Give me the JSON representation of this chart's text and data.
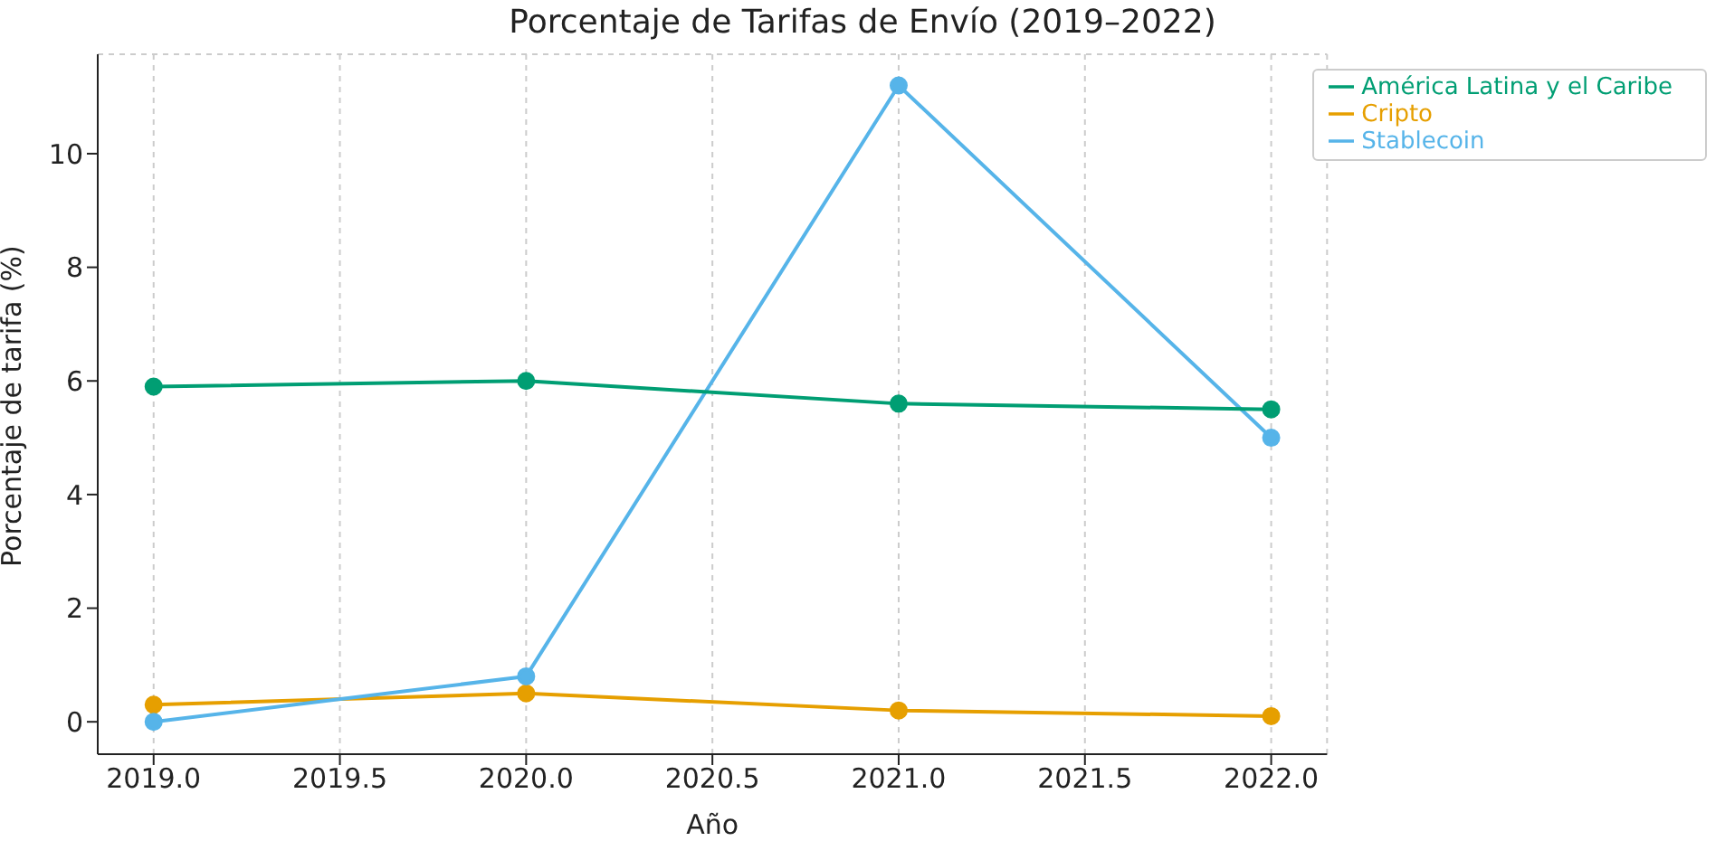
{
  "chart_data": {
    "type": "line",
    "title": "Porcentaje de Tarifas de Envío (2019–2022)",
    "xlabel": "Año",
    "ylabel": "Porcentaje de tarifa (%)",
    "x": [
      2019,
      2020,
      2021,
      2022
    ],
    "series": [
      {
        "name": "Cripto",
        "color": "#e69f00",
        "values": [
          0.3,
          0.5,
          0.2,
          0.1
        ]
      },
      {
        "name": "Stablecoin",
        "color": "#56b4e9",
        "values": [
          0,
          0.8,
          11.2,
          5.0
        ]
      },
      {
        "name": "América Latina y el Caribe",
        "color": "#009e73",
        "values": [
          5.9,
          6.0,
          5.6,
          5.5
        ]
      }
    ],
    "xlim": [
      2018.85,
      2022.15
    ],
    "xticks": [
      {
        "value": 2019,
        "label": "2019.0"
      },
      {
        "value": 2019.5,
        "label": "2019.5"
      },
      {
        "value": 2020,
        "label": "2020.0"
      },
      {
        "value": 2020.5,
        "label": "2020.5"
      },
      {
        "value": 2021,
        "label": "2021.0"
      },
      {
        "value": 2021.5,
        "label": "2021.5"
      },
      {
        "value": 2022,
        "label": "2022.0"
      }
    ],
    "ylim": [
      -0.57,
      11.75
    ],
    "yticks": [
      0,
      2,
      4,
      6,
      8,
      10
    ],
    "grid": true,
    "legend": "top right",
    "marker": "circle",
    "line_style": "solid"
  }
}
